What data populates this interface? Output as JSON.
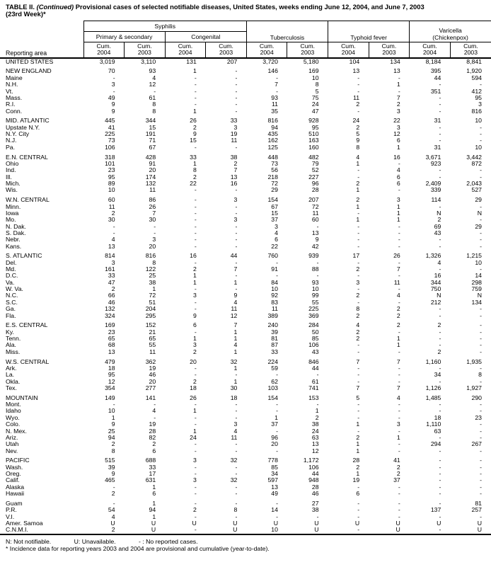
{
  "title": {
    "prefix": "TABLE II. ",
    "continued": "(Continued)",
    "line1_rest": " Provisional cases of selected notifiable diseases, United States, weeks ending June 12, 2004, and June 7, 2003",
    "line2": "(23rd Week)*"
  },
  "header": {
    "reporting_area": "Reporting area",
    "syphilis": "Syphilis",
    "primary_secondary": "Primary & secondary",
    "congenital": "Congenital",
    "tuberculosis": "Tuberculosis",
    "typhoid_fever": "Typhoid fever",
    "varicella": "Varicella",
    "chickenpox": "(Chickenpox)",
    "cum": "Cum.",
    "year_2004": "2004",
    "year_2003": "2003"
  },
  "sections": [
    {
      "rows": [
        {
          "area": "UNITED STATES",
          "values": [
            "3,019",
            "3,110",
            "131",
            "207",
            "3,720",
            "5,180",
            "104",
            "134",
            "8,184",
            "8,841"
          ]
        }
      ]
    },
    {
      "rows": [
        {
          "area": "NEW ENGLAND",
          "values": [
            "70",
            "93",
            "1",
            "-",
            "146",
            "169",
            "13",
            "13",
            "395",
            "1,920"
          ]
        },
        {
          "area": "Maine",
          "values": [
            "-",
            "4",
            "-",
            "-",
            "-",
            "10",
            "-",
            "-",
            "44",
            "594"
          ]
        },
        {
          "area": "N.H.",
          "values": [
            "3",
            "12",
            "-",
            "-",
            "7",
            "8",
            "-",
            "1",
            "-",
            "-"
          ]
        },
        {
          "area": "Vt.",
          "values": [
            "-",
            "-",
            "-",
            "-",
            "-",
            "5",
            "-",
            "-",
            "351",
            "412"
          ]
        },
        {
          "area": "Mass.",
          "values": [
            "49",
            "61",
            "-",
            "-",
            "93",
            "75",
            "11",
            "7",
            "-",
            "95"
          ]
        },
        {
          "area": "R.I.",
          "values": [
            "9",
            "8",
            "-",
            "-",
            "11",
            "24",
            "2",
            "2",
            "-",
            "3"
          ]
        },
        {
          "area": "Conn.",
          "values": [
            "9",
            "8",
            "1",
            "-",
            "35",
            "47",
            "-",
            "3",
            "-",
            "816"
          ]
        }
      ]
    },
    {
      "rows": [
        {
          "area": "MID. ATLANTIC",
          "values": [
            "445",
            "344",
            "26",
            "33",
            "816",
            "928",
            "24",
            "22",
            "31",
            "10"
          ]
        },
        {
          "area": "Upstate N.Y.",
          "values": [
            "41",
            "15",
            "2",
            "3",
            "94",
            "95",
            "2",
            "3",
            "-",
            "-"
          ]
        },
        {
          "area": "N.Y. City",
          "values": [
            "225",
            "191",
            "9",
            "19",
            "435",
            "510",
            "5",
            "12",
            "-",
            "-"
          ]
        },
        {
          "area": "N.J.",
          "values": [
            "73",
            "71",
            "15",
            "11",
            "162",
            "163",
            "9",
            "6",
            "-",
            "-"
          ]
        },
        {
          "area": "Pa.",
          "values": [
            "106",
            "67",
            "-",
            "-",
            "125",
            "160",
            "8",
            "1",
            "31",
            "10"
          ]
        }
      ]
    },
    {
      "rows": [
        {
          "area": "E.N. CENTRAL",
          "values": [
            "318",
            "428",
            "33",
            "38",
            "448",
            "482",
            "4",
            "16",
            "3,671",
            "3,442"
          ]
        },
        {
          "area": "Ohio",
          "values": [
            "101",
            "91",
            "1",
            "2",
            "73",
            "79",
            "1",
            "-",
            "923",
            "872"
          ]
        },
        {
          "area": "Ind.",
          "values": [
            "23",
            "20",
            "8",
            "7",
            "56",
            "52",
            "-",
            "4",
            "-",
            "-"
          ]
        },
        {
          "area": "Ill.",
          "values": [
            "95",
            "174",
            "2",
            "13",
            "218",
            "227",
            "-",
            "6",
            "-",
            "-"
          ]
        },
        {
          "area": "Mich.",
          "values": [
            "89",
            "132",
            "22",
            "16",
            "72",
            "96",
            "2",
            "6",
            "2,409",
            "2,043"
          ]
        },
        {
          "area": "Wis.",
          "values": [
            "10",
            "11",
            "-",
            "-",
            "29",
            "28",
            "1",
            "-",
            "339",
            "527"
          ]
        }
      ]
    },
    {
      "rows": [
        {
          "area": "W.N. CENTRAL",
          "values": [
            "60",
            "86",
            "-",
            "3",
            "154",
            "207",
            "2",
            "3",
            "114",
            "29"
          ]
        },
        {
          "area": "Minn.",
          "values": [
            "11",
            "26",
            "-",
            "-",
            "67",
            "72",
            "1",
            "1",
            "-",
            "-"
          ]
        },
        {
          "area": "Iowa",
          "values": [
            "2",
            "7",
            "-",
            "-",
            "15",
            "11",
            "-",
            "1",
            "N",
            "N"
          ]
        },
        {
          "area": "Mo.",
          "values": [
            "30",
            "30",
            "-",
            "3",
            "37",
            "60",
            "1",
            "1",
            "2",
            "-"
          ]
        },
        {
          "area": "N. Dak.",
          "values": [
            "-",
            "-",
            "-",
            "-",
            "3",
            "-",
            "-",
            "-",
            "69",
            "29"
          ]
        },
        {
          "area": "S. Dak.",
          "values": [
            "-",
            "-",
            "-",
            "-",
            "4",
            "13",
            "-",
            "-",
            "43",
            "-"
          ]
        },
        {
          "area": "Nebr.",
          "values": [
            "4",
            "3",
            "-",
            "-",
            "6",
            "9",
            "-",
            "-",
            "-",
            "-"
          ]
        },
        {
          "area": "Kans.",
          "values": [
            "13",
            "20",
            "-",
            "-",
            "22",
            "42",
            "-",
            "-",
            "-",
            "-"
          ]
        }
      ]
    },
    {
      "rows": [
        {
          "area": "S. ATLANTIC",
          "values": [
            "814",
            "816",
            "16",
            "44",
            "760",
            "939",
            "17",
            "26",
            "1,326",
            "1,215"
          ]
        },
        {
          "area": "Del.",
          "values": [
            "3",
            "8",
            "-",
            "-",
            "-",
            "-",
            "-",
            "-",
            "4",
            "10"
          ]
        },
        {
          "area": "Md.",
          "values": [
            "161",
            "122",
            "2",
            "7",
            "91",
            "88",
            "2",
            "7",
            "-",
            "-"
          ]
        },
        {
          "area": "D.C.",
          "values": [
            "33",
            "25",
            "1",
            "-",
            "-",
            "-",
            "-",
            "-",
            "16",
            "14"
          ]
        },
        {
          "area": "Va.",
          "values": [
            "47",
            "38",
            "1",
            "1",
            "84",
            "93",
            "3",
            "11",
            "344",
            "298"
          ]
        },
        {
          "area": "W. Va.",
          "values": [
            "2",
            "1",
            "-",
            "-",
            "10",
            "10",
            "-",
            "-",
            "750",
            "759"
          ]
        },
        {
          "area": "N.C.",
          "values": [
            "66",
            "72",
            "3",
            "9",
            "92",
            "99",
            "2",
            "4",
            "N",
            "N"
          ]
        },
        {
          "area": "S.C.",
          "values": [
            "46",
            "51",
            "-",
            "4",
            "83",
            "55",
            "-",
            "-",
            "212",
            "134"
          ]
        },
        {
          "area": "Ga.",
          "values": [
            "132",
            "204",
            "-",
            "11",
            "11",
            "225",
            "8",
            "2",
            "-",
            "-"
          ]
        },
        {
          "area": "Fla.",
          "values": [
            "324",
            "295",
            "9",
            "12",
            "389",
            "369",
            "2",
            "2",
            "-",
            "-"
          ]
        }
      ]
    },
    {
      "rows": [
        {
          "area": "E.S. CENTRAL",
          "values": [
            "169",
            "152",
            "6",
            "7",
            "240",
            "284",
            "4",
            "2",
            "2",
            "-"
          ]
        },
        {
          "area": "Ky.",
          "values": [
            "23",
            "21",
            "-",
            "1",
            "39",
            "50",
            "2",
            "-",
            "-",
            "-"
          ]
        },
        {
          "area": "Tenn.",
          "values": [
            "65",
            "65",
            "1",
            "1",
            "81",
            "85",
            "2",
            "1",
            "-",
            "-"
          ]
        },
        {
          "area": "Ala.",
          "values": [
            "68",
            "55",
            "3",
            "4",
            "87",
            "106",
            "-",
            "1",
            "-",
            "-"
          ]
        },
        {
          "area": "Miss.",
          "values": [
            "13",
            "11",
            "2",
            "1",
            "33",
            "43",
            "-",
            "-",
            "2",
            "-"
          ]
        }
      ]
    },
    {
      "rows": [
        {
          "area": "W.S. CENTRAL",
          "values": [
            "479",
            "362",
            "20",
            "32",
            "224",
            "846",
            "7",
            "7",
            "1,160",
            "1,935"
          ]
        },
        {
          "area": "Ark.",
          "values": [
            "18",
            "19",
            "-",
            "1",
            "59",
            "44",
            "-",
            "-",
            "-",
            "-"
          ]
        },
        {
          "area": "La.",
          "values": [
            "95",
            "46",
            "-",
            "-",
            "-",
            "-",
            "-",
            "-",
            "34",
            "8"
          ]
        },
        {
          "area": "Okla.",
          "values": [
            "12",
            "20",
            "2",
            "1",
            "62",
            "61",
            "-",
            "-",
            "-",
            "-"
          ]
        },
        {
          "area": "Tex.",
          "values": [
            "354",
            "277",
            "18",
            "30",
            "103",
            "741",
            "7",
            "7",
            "1,126",
            "1,927"
          ]
        }
      ]
    },
    {
      "rows": [
        {
          "area": "MOUNTAIN",
          "values": [
            "149",
            "141",
            "26",
            "18",
            "154",
            "153",
            "5",
            "4",
            "1,485",
            "290"
          ]
        },
        {
          "area": "Mont.",
          "values": [
            "-",
            "-",
            "-",
            "-",
            "-",
            "-",
            "-",
            "-",
            "-",
            "-"
          ]
        },
        {
          "area": "Idaho",
          "values": [
            "10",
            "4",
            "1",
            "-",
            "-",
            "1",
            "-",
            "-",
            "-",
            "-"
          ]
        },
        {
          "area": "Wyo.",
          "values": [
            "1",
            "-",
            "-",
            "-",
            "1",
            "2",
            "-",
            "-",
            "18",
            "23"
          ]
        },
        {
          "area": "Colo.",
          "values": [
            "9",
            "19",
            "-",
            "3",
            "37",
            "38",
            "1",
            "3",
            "1,110",
            "-"
          ]
        },
        {
          "area": "N. Mex.",
          "values": [
            "25",
            "28",
            "1",
            "4",
            "-",
            "24",
            "-",
            "-",
            "63",
            "-"
          ]
        },
        {
          "area": "Ariz.",
          "values": [
            "94",
            "82",
            "24",
            "11",
            "96",
            "63",
            "2",
            "1",
            "-",
            "-"
          ]
        },
        {
          "area": "Utah",
          "values": [
            "2",
            "2",
            "-",
            "-",
            "20",
            "13",
            "1",
            "-",
            "294",
            "267"
          ]
        },
        {
          "area": "Nev.",
          "values": [
            "8",
            "6",
            "-",
            "-",
            "-",
            "12",
            "1",
            "-",
            "-",
            "-"
          ]
        }
      ]
    },
    {
      "rows": [
        {
          "area": "PACIFIC",
          "values": [
            "515",
            "688",
            "3",
            "32",
            "778",
            "1,172",
            "28",
            "41",
            "-",
            "-"
          ]
        },
        {
          "area": "Wash.",
          "values": [
            "39",
            "33",
            "-",
            "-",
            "85",
            "106",
            "2",
            "2",
            "-",
            "-"
          ]
        },
        {
          "area": "Oreg.",
          "values": [
            "9",
            "17",
            "-",
            "-",
            "34",
            "44",
            "1",
            "2",
            "-",
            "-"
          ]
        },
        {
          "area": "Calif.",
          "values": [
            "465",
            "631",
            "3",
            "32",
            "597",
            "948",
            "19",
            "37",
            "-",
            "-"
          ]
        },
        {
          "area": "Alaska",
          "values": [
            "-",
            "1",
            "-",
            "-",
            "13",
            "28",
            "-",
            "-",
            "-",
            "-"
          ]
        },
        {
          "area": "Hawaii",
          "values": [
            "2",
            "6",
            "-",
            "-",
            "49",
            "46",
            "6",
            "-",
            "-",
            "-"
          ]
        }
      ]
    },
    {
      "rows": [
        {
          "area": "Guam",
          "values": [
            "-",
            "1",
            "-",
            "-",
            "-",
            "27",
            "-",
            "-",
            "-",
            "81"
          ]
        },
        {
          "area": "P.R.",
          "values": [
            "54",
            "94",
            "2",
            "8",
            "14",
            "38",
            "-",
            "-",
            "137",
            "257"
          ]
        },
        {
          "area": "V.I.",
          "values": [
            "4",
            "1",
            "-",
            "-",
            "-",
            "-",
            "-",
            "-",
            "-",
            "-"
          ]
        },
        {
          "area": "Amer. Samoa",
          "values": [
            "U",
            "U",
            "U",
            "U",
            "U",
            "U",
            "U",
            "U",
            "U",
            "U"
          ]
        },
        {
          "area": "C.N.M.I.",
          "values": [
            "2",
            "U",
            "-",
            "U",
            "10",
            "U",
            "-",
            "U",
            "-",
            "U"
          ]
        }
      ]
    }
  ],
  "footnotes": {
    "not_notifiable": "N: Not notifiable.",
    "unavailable": "U: Unavailable.",
    "no_reported": "- : No reported cases.",
    "incidence_note": "* Incidence data for reporting years 2003 and 2004 are provisional and cumulative (year-to-date)."
  }
}
